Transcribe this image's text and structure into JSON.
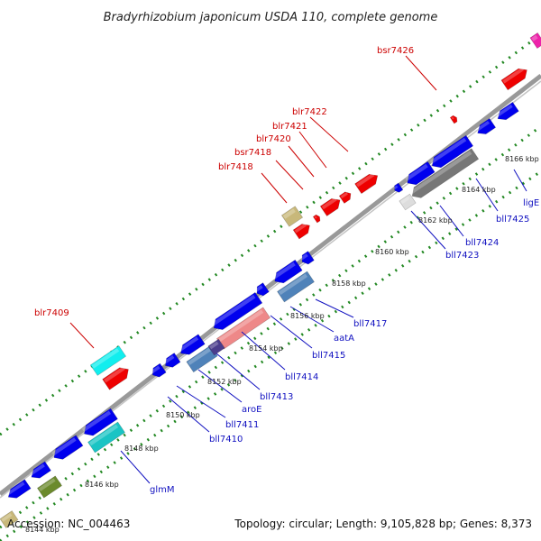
{
  "title": "Bradyrhizobium japonicum USDA 110, complete genome",
  "footer": {
    "accession": "Accession: NC_004463",
    "topology": "Topology: circular; Length: 9,105,828 bp; Genes: 8,373"
  },
  "colors": {
    "backbone": "#999999",
    "forward_gene": "#0000ee",
    "red_gene": "#ee0000",
    "dot_track": "#228822",
    "label_red": "#cc0000",
    "label_blue": "#1010c0"
  },
  "kbp_ticks": [
    "8144 kbp",
    "8146 kbp",
    "8148 kbp",
    "8150 kbp",
    "8152 kbp",
    "8154 kbp",
    "8156 kbp",
    "8158 kbp",
    "8160 kbp",
    "8162 kbp",
    "8164 kbp",
    "8166 kbp"
  ],
  "labels_top": [
    "bsr7426",
    "blr7422",
    "blr7421",
    "blr7420",
    "bsr7418",
    "blr7418",
    "blr7409"
  ],
  "labels_bottom": [
    "ligE",
    "bll7425",
    "bll7424",
    "bll7423",
    "bll7417",
    "aatA",
    "bll7415",
    "bll7414",
    "bll7413",
    "aroE",
    "bll7411",
    "bll7410",
    "glmM"
  ]
}
